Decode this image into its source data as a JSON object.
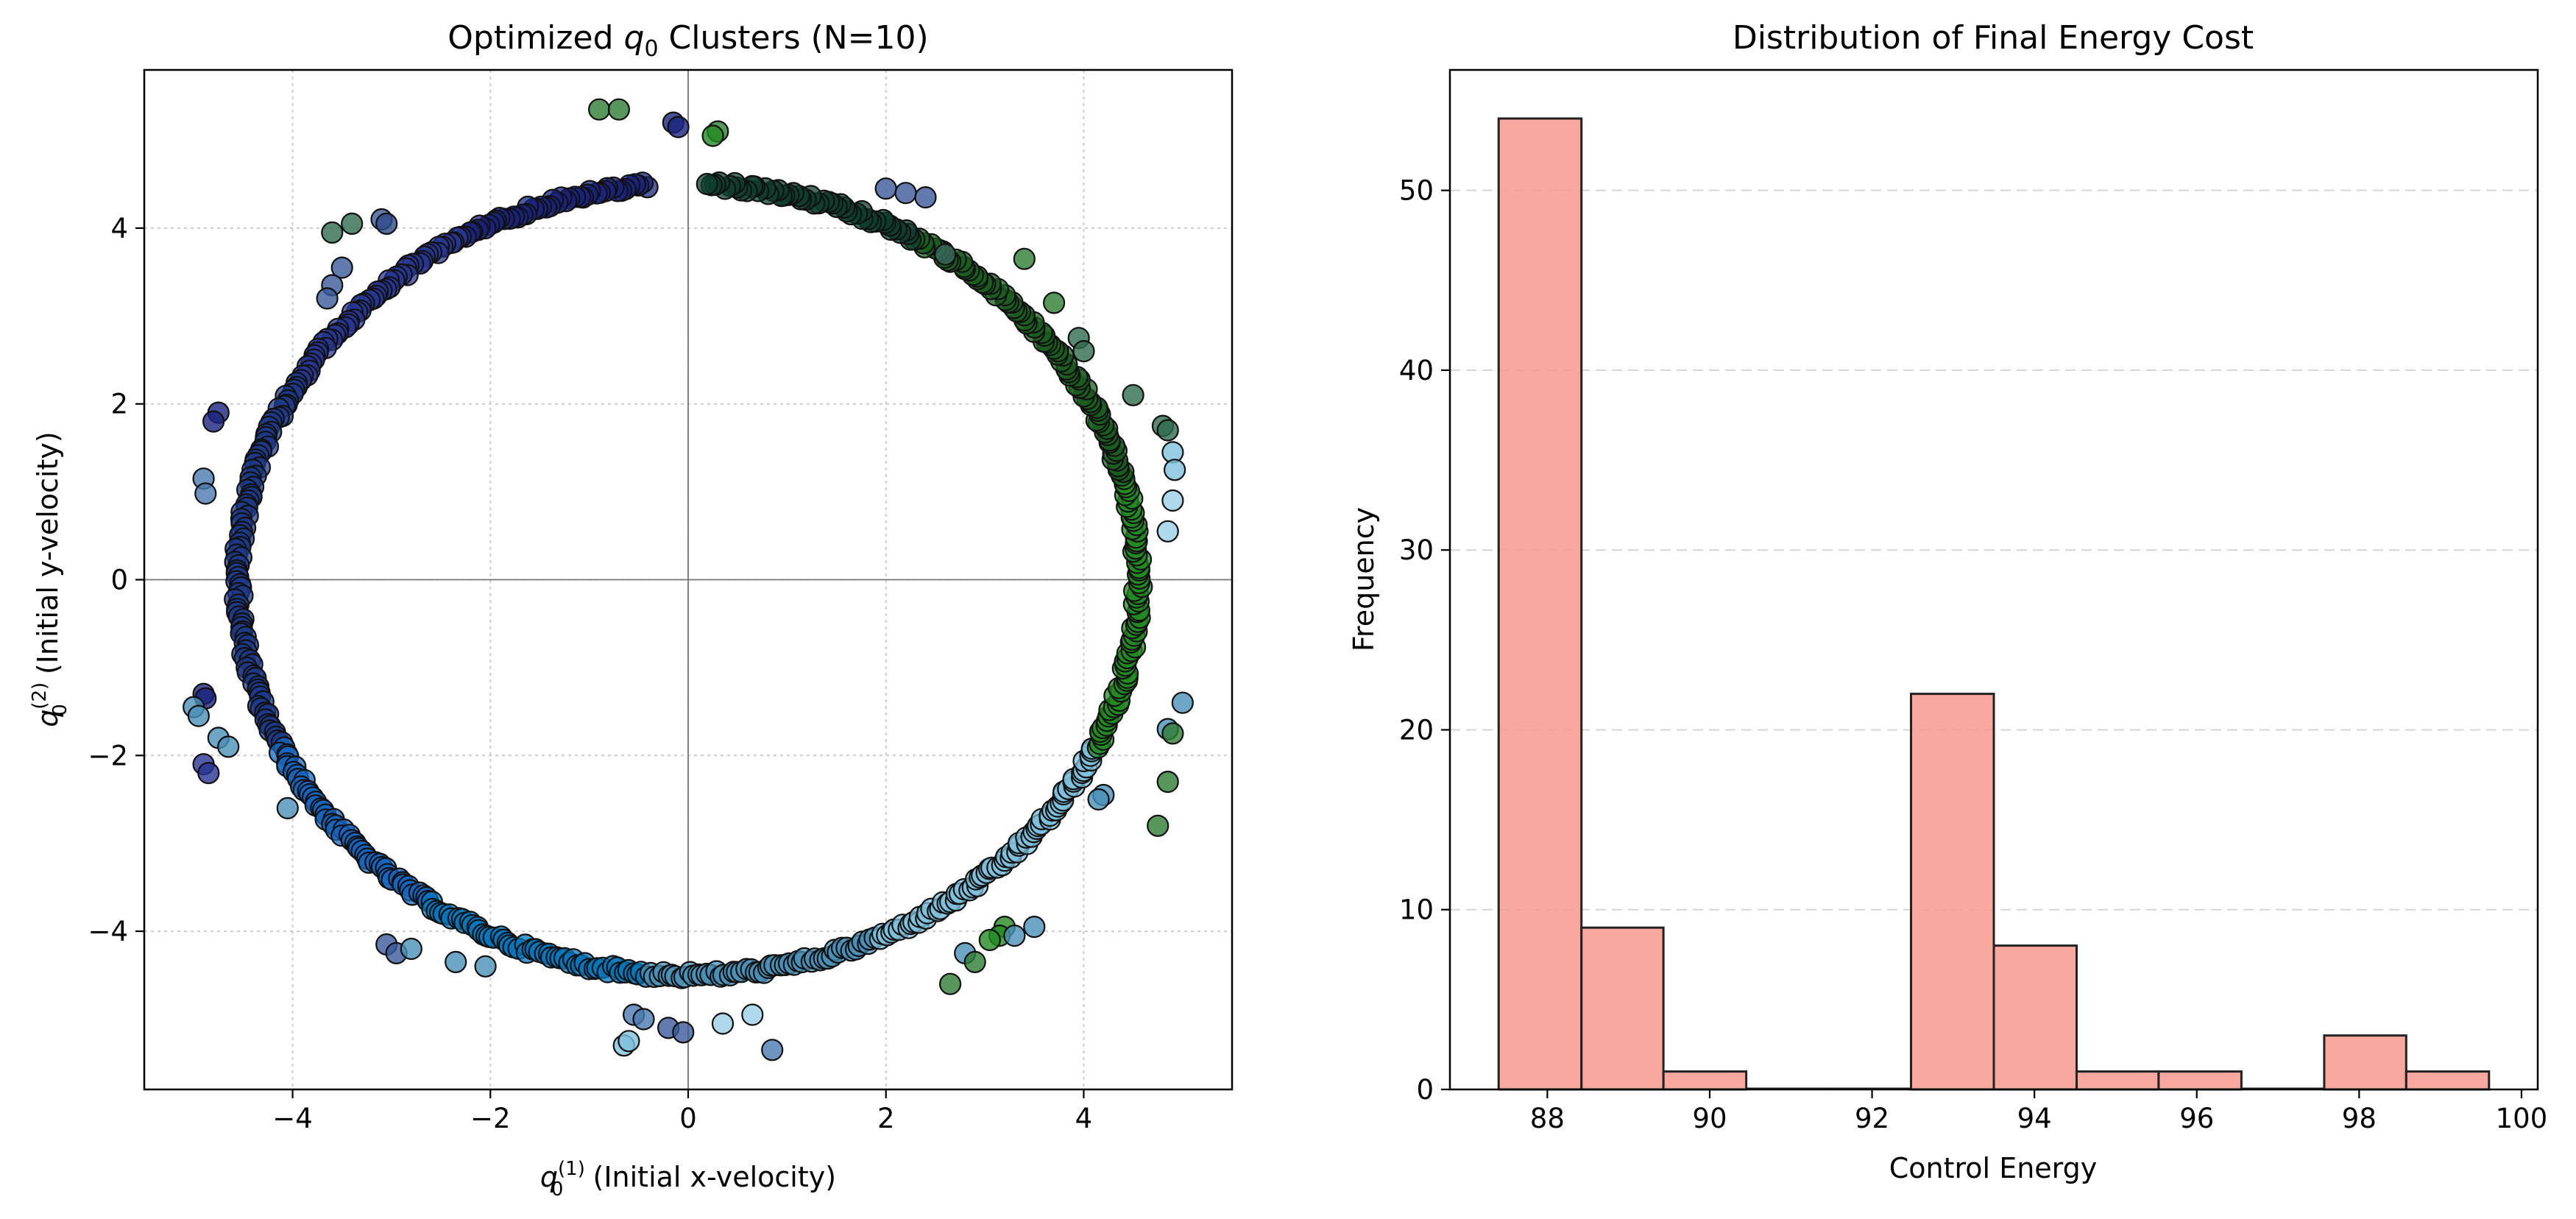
{
  "chart_data": [
    {
      "type": "scatter",
      "title_prefix": "Optimized ",
      "title_var": "q",
      "title_sub": "0",
      "title_suffix": " Clusters (N=10)",
      "xlabel_var": "q",
      "xlabel_sub": "0",
      "xlabel_sup": "(1)",
      "xlabel_text": " (Initial x-velocity)",
      "ylabel_var": "q",
      "ylabel_sub": "0",
      "ylabel_sup": "(2)",
      "ylabel_text": " (Initial y-velocity)",
      "xlim": [
        -5.5,
        5.5
      ],
      "ylim": [
        -5.8,
        5.8
      ],
      "xticks": [
        -4,
        -2,
        0,
        2,
        4
      ],
      "xtick_labels": [
        "−4",
        "−2",
        "0",
        "2",
        "4"
      ],
      "yticks": [
        -4,
        -2,
        0,
        2,
        4
      ],
      "ytick_labels": [
        "−4",
        "−2",
        "0",
        "2",
        "4"
      ],
      "grid": true,
      "ring_radius": 4.5,
      "ring_radius_x": 4.55,
      "clusters": [
        {
          "color": "#1a237e",
          "arc": [
            95,
            120
          ]
        },
        {
          "color": "#283593",
          "arc": [
            120,
            150
          ]
        },
        {
          "color": "#1e3a8a",
          "arc": [
            150,
            205
          ]
        },
        {
          "color": "#1565c0",
          "arc": [
            205,
            235
          ]
        },
        {
          "color": "#0277bd",
          "arc": [
            235,
            265
          ]
        },
        {
          "color": "#4a90b8",
          "arc": [
            265,
            295
          ]
        },
        {
          "color": "#7ec0dc",
          "arc": [
            295,
            335
          ]
        },
        {
          "color": "#228b22",
          "arc": [
            335,
            375
          ]
        },
        {
          "color": "#1b5e20",
          "arc": [
            15,
            60
          ]
        },
        {
          "color": "#0f3d2e",
          "arc": [
            60,
            88
          ]
        }
      ],
      "outliers": [
        {
          "x": -0.9,
          "y": 5.35,
          "c": "#2e7d32"
        },
        {
          "x": -0.7,
          "y": 5.35,
          "c": "#2e7d32"
        },
        {
          "x": -0.15,
          "y": 5.2,
          "c": "#1a237e"
        },
        {
          "x": -0.1,
          "y": 5.15,
          "c": "#1a237e"
        },
        {
          "x": 0.3,
          "y": 5.1,
          "c": "#2e7d32"
        },
        {
          "x": 0.25,
          "y": 5.05,
          "c": "#228b22"
        },
        {
          "x": 2.0,
          "y": 4.45,
          "c": "#3a5a9a"
        },
        {
          "x": 2.2,
          "y": 4.4,
          "c": "#3a5a9a"
        },
        {
          "x": 2.4,
          "y": 4.35,
          "c": "#3a5a9a"
        },
        {
          "x": -3.1,
          "y": 4.1,
          "c": "#3a5a9a"
        },
        {
          "x": -3.05,
          "y": 4.05,
          "c": "#2d4a8a"
        },
        {
          "x": -3.4,
          "y": 4.05,
          "c": "#2e6b4f"
        },
        {
          "x": -3.6,
          "y": 3.95,
          "c": "#2e6b4f"
        },
        {
          "x": -3.5,
          "y": 3.55,
          "c": "#3a5a9a"
        },
        {
          "x": -3.6,
          "y": 3.35,
          "c": "#3a5a9a"
        },
        {
          "x": -3.65,
          "y": 3.2,
          "c": "#3a5a9a"
        },
        {
          "x": 2.6,
          "y": 3.7,
          "c": "#3a6a5a"
        },
        {
          "x": 3.4,
          "y": 3.65,
          "c": "#2e7d32"
        },
        {
          "x": 3.7,
          "y": 3.15,
          "c": "#2e7d32"
        },
        {
          "x": 3.95,
          "y": 2.75,
          "c": "#2e6b4f"
        },
        {
          "x": 4.0,
          "y": 2.6,
          "c": "#2e6b4f"
        },
        {
          "x": 4.5,
          "y": 2.1,
          "c": "#2e6b4f"
        },
        {
          "x": 4.8,
          "y": 1.75,
          "c": "#2e6b4f"
        },
        {
          "x": 4.85,
          "y": 1.7,
          "c": "#2e6b4f"
        },
        {
          "x": -4.75,
          "y": 1.9,
          "c": "#1a237e"
        },
        {
          "x": -4.8,
          "y": 1.8,
          "c": "#1a237e"
        },
        {
          "x": -4.9,
          "y": 1.15,
          "c": "#4a7ab0"
        },
        {
          "x": -4.88,
          "y": 0.98,
          "c": "#4a7ab0"
        },
        {
          "x": 4.9,
          "y": 1.45,
          "c": "#7ec0dc"
        },
        {
          "x": 4.92,
          "y": 1.25,
          "c": "#7ec0dc"
        },
        {
          "x": 4.9,
          "y": 0.9,
          "c": "#9ad0e6"
        },
        {
          "x": 4.85,
          "y": 0.55,
          "c": "#9ad0e6"
        },
        {
          "x": -4.9,
          "y": -1.3,
          "c": "#1a237e"
        },
        {
          "x": -4.88,
          "y": -1.35,
          "c": "#1a237e"
        },
        {
          "x": -5.0,
          "y": -1.45,
          "c": "#4a90b8"
        },
        {
          "x": -4.95,
          "y": -1.55,
          "c": "#4a90b8"
        },
        {
          "x": -4.75,
          "y": -1.8,
          "c": "#4a90b8"
        },
        {
          "x": -4.65,
          "y": -1.9,
          "c": "#4a90b8"
        },
        {
          "x": -4.9,
          "y": -2.1,
          "c": "#283593"
        },
        {
          "x": -4.85,
          "y": -2.2,
          "c": "#283593"
        },
        {
          "x": -4.05,
          "y": -2.6,
          "c": "#4a90b8"
        },
        {
          "x": 5.0,
          "y": -1.4,
          "c": "#4a90b8"
        },
        {
          "x": 4.85,
          "y": -1.7,
          "c": "#4a90b8"
        },
        {
          "x": 4.9,
          "y": -1.75,
          "c": "#2e7d32"
        },
        {
          "x": 4.2,
          "y": -2.45,
          "c": "#4a90b8"
        },
        {
          "x": 4.15,
          "y": -2.5,
          "c": "#4a90b8"
        },
        {
          "x": 4.85,
          "y": -2.3,
          "c": "#2e7d32"
        },
        {
          "x": 4.75,
          "y": -2.8,
          "c": "#2e7d32"
        },
        {
          "x": -3.05,
          "y": -4.15,
          "c": "#3a5a9a"
        },
        {
          "x": -2.95,
          "y": -4.25,
          "c": "#3a5a9a"
        },
        {
          "x": -2.8,
          "y": -4.2,
          "c": "#4a90b8"
        },
        {
          "x": -2.35,
          "y": -4.35,
          "c": "#4a90b8"
        },
        {
          "x": -2.05,
          "y": -4.4,
          "c": "#4a90b8"
        },
        {
          "x": 3.5,
          "y": -3.95,
          "c": "#4a90b8"
        },
        {
          "x": 3.2,
          "y": -3.95,
          "c": "#228b22"
        },
        {
          "x": 3.15,
          "y": -4.05,
          "c": "#228b22"
        },
        {
          "x": 3.05,
          "y": -4.1,
          "c": "#228b22"
        },
        {
          "x": 3.3,
          "y": -4.05,
          "c": "#4a90b8"
        },
        {
          "x": 2.8,
          "y": -4.25,
          "c": "#4a90b8"
        },
        {
          "x": 2.9,
          "y": -4.35,
          "c": "#2e7d32"
        },
        {
          "x": 2.65,
          "y": -4.6,
          "c": "#2e7d32"
        },
        {
          "x": -0.55,
          "y": -4.95,
          "c": "#4a7ab0"
        },
        {
          "x": -0.45,
          "y": -5.0,
          "c": "#4a7ab0"
        },
        {
          "x": -0.2,
          "y": -5.1,
          "c": "#3a5a9a"
        },
        {
          "x": -0.05,
          "y": -5.15,
          "c": "#3a5a9a"
        },
        {
          "x": -0.65,
          "y": -5.3,
          "c": "#7ec0dc"
        },
        {
          "x": -0.6,
          "y": -5.25,
          "c": "#7ec0dc"
        },
        {
          "x": 0.35,
          "y": -5.05,
          "c": "#9ad0e6"
        },
        {
          "x": 0.65,
          "y": -4.95,
          "c": "#9ad0e6"
        },
        {
          "x": 0.85,
          "y": -5.35,
          "c": "#4a7ab0"
        }
      ]
    },
    {
      "type": "bar",
      "title": "Distribution of Final Energy Cost",
      "xlabel": "Control Energy",
      "ylabel": "Frequency",
      "bin_edges": [
        87.4,
        88.42,
        89.43,
        90.45,
        91.47,
        92.48,
        93.5,
        94.52,
        95.53,
        96.55,
        97.57,
        98.58,
        99.6
      ],
      "values": [
        54,
        9,
        1,
        0,
        0,
        22,
        8,
        1,
        1,
        0,
        3,
        1
      ],
      "xlim": [
        86.8,
        100.2
      ],
      "ylim": [
        0,
        56.7
      ],
      "xticks": [
        88,
        90,
        92,
        94,
        96,
        98,
        100
      ],
      "xtick_labels": [
        "88",
        "90",
        "92",
        "94",
        "96",
        "98",
        "100"
      ],
      "yticks": [
        0,
        10,
        20,
        30,
        40,
        50
      ],
      "ytick_labels": [
        "0",
        "10",
        "20",
        "30",
        "40",
        "50"
      ],
      "bar_color": "#f7998d",
      "edge_color": "#222222",
      "grid": "y-dashed"
    }
  ]
}
